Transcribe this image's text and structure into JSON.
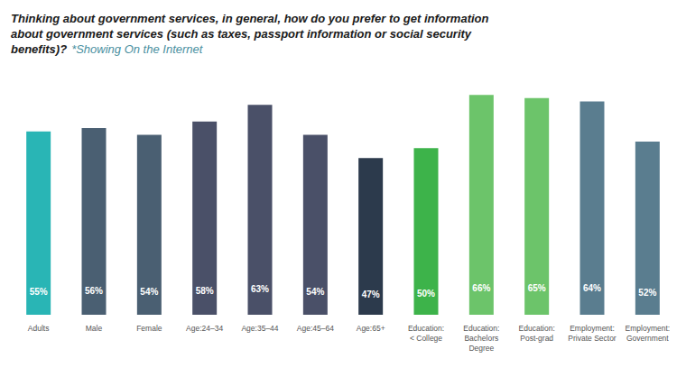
{
  "chart_data": {
    "type": "bar",
    "title": "Thinking about government services, in general, how do you prefer to get information\nabout government services (such as taxes, passport information or social security\nbenefits)?",
    "subtitle": "*Showing On the Internet",
    "categories": [
      "Adults",
      "Male",
      "Female",
      "Age:24–34",
      "Age:35–44",
      "Age:45–64",
      "Age:65+",
      "Education:\n< College",
      "Education:\nBachelors\nDegree",
      "Education:\nPost-grad",
      "Employment:\nPrivate Sector",
      "Employment:\nGovernment"
    ],
    "values": [
      55,
      56,
      54,
      58,
      63,
      54,
      47,
      50,
      66,
      65,
      64,
      52
    ],
    "value_labels": [
      "55%",
      "56%",
      "54%",
      "58%",
      "63%",
      "54%",
      "47%",
      "50%",
      "66%",
      "65%",
      "64%",
      "52%"
    ],
    "colors": [
      "#29b5b5",
      "#4a5f72",
      "#4a5f72",
      "#4a5068",
      "#4a5068",
      "#4a5068",
      "#2c3a4c",
      "#3db34a",
      "#6cc46a",
      "#6cc46a",
      "#5a7d8f",
      "#5a7d8f"
    ],
    "ylim": [
      0,
      72
    ],
    "grid": false,
    "data_labels": true,
    "tick_labels": "x"
  }
}
